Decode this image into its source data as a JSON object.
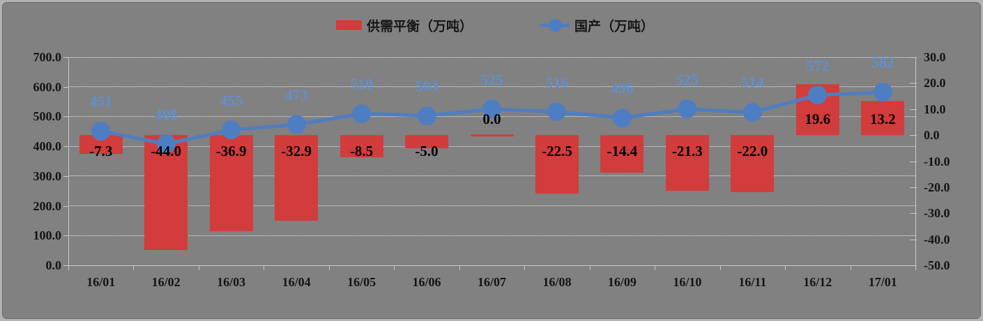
{
  "colors": {
    "background": "#818181",
    "frame_band": "#b3b3b3",
    "frame_border": "#6a6a6a",
    "gridline": "#efefef",
    "axis_line": "#c9c9c9",
    "axis_text": "#141414",
    "bar_fill": "#d23c3c",
    "line_color": "#4e7ec2",
    "line_label_color": "#6090d0",
    "bar_label_color": "#000000"
  },
  "legend": {
    "items": [
      {
        "label": "供需平衡（万吨）",
        "swatch": "bar-swatch"
      },
      {
        "label": "国产（万吨）",
        "swatch": "line-marker-swatch"
      }
    ]
  },
  "chart_data": {
    "type": "combo-bar-line",
    "categories": [
      "16/01",
      "16/02",
      "16/03",
      "16/04",
      "16/05",
      "16/06",
      "16/07",
      "16/08",
      "16/09",
      "16/10",
      "16/11",
      "16/12",
      "17/01"
    ],
    "series": [
      {
        "name": "供需平衡（万吨）",
        "type": "bar",
        "axis": "right",
        "values": [
          -7.3,
          -44.0,
          -36.9,
          -32.9,
          -8.5,
          -5.0,
          0.0,
          -22.5,
          -14.4,
          -21.3,
          -22.0,
          19.6,
          13.2
        ],
        "labels": [
          "-7.3",
          "-44.0",
          "-36.9",
          "-32.9",
          "-8.5",
          "-5.0",
          "0.0",
          "-22.5",
          "-14.4",
          "-21.3",
          "-22.0",
          "19.6",
          "13.2"
        ]
      },
      {
        "name": "国产（万吨）",
        "type": "line",
        "axis": "left",
        "values": [
          451,
          408,
          455,
          473,
          510,
          503,
          525,
          516,
          496,
          525,
          514,
          572,
          582
        ],
        "labels": [
          "451",
          "408",
          "455",
          "473",
          "510",
          "503",
          "525",
          "516",
          "496",
          "525",
          "514",
          "572",
          "582"
        ]
      }
    ],
    "left_axis": {
      "min": 0,
      "max": 700,
      "step": 100,
      "labels": [
        "700.0",
        "600.0",
        "500.0",
        "400.0",
        "300.0",
        "200.0",
        "100.0",
        "0.0"
      ]
    },
    "right_axis": {
      "min": -50,
      "max": 30,
      "step": 10,
      "labels": [
        "30.0",
        "20.0",
        "10.0",
        "0.0",
        "-10.0",
        "-20.0",
        "-30.0",
        "-40.0",
        "-50.0"
      ]
    },
    "grid": "horizontal-dotted",
    "legend_position": "top-center"
  }
}
